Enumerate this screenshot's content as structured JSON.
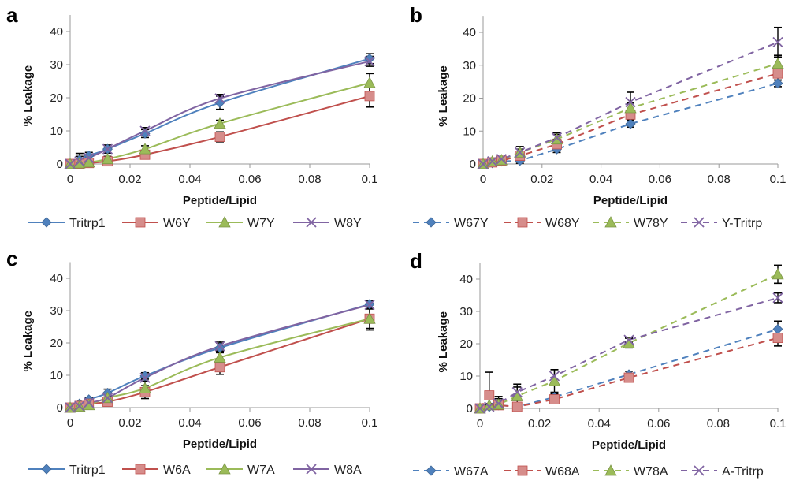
{
  "chart_data": [
    {
      "type": "line",
      "panel": "a",
      "title": "",
      "xlabel": "Peptide/Lipid",
      "ylabel": "% Leakage",
      "xlim": [
        0,
        0.1
      ],
      "ylim": [
        0,
        45
      ],
      "xticks": [
        "0",
        "0.02",
        "0.04",
        "0.06",
        "0.08",
        "0.1"
      ],
      "yticks": [
        "0",
        "10",
        "20",
        "30",
        "40"
      ],
      "line_style": "solid-smooth",
      "legend_position": "bottom",
      "x": [
        0,
        0.003125,
        0.00625,
        0.0125,
        0.025,
        0.05,
        0.1
      ],
      "series": [
        {
          "name": "Tritrp1",
          "marker": "diamond",
          "color": "#4f81bd",
          "values": [
            0,
            1.2,
            2.5,
            4.5,
            9.2,
            18.5,
            31.8
          ],
          "errors": [
            0.5,
            2.0,
            1.0,
            1.2,
            1.2,
            2.0,
            1.5
          ]
        },
        {
          "name": "W6Y",
          "marker": "square",
          "color": "#c0504d",
          "values": [
            0,
            0,
            0.3,
            0.8,
            2.8,
            8.2,
            20.5
          ],
          "errors": [
            0.3,
            0.5,
            0.5,
            1.0,
            1.0,
            1.5,
            3.3
          ]
        },
        {
          "name": "W7Y",
          "marker": "triangle",
          "color": "#9bbb59",
          "values": [
            0,
            0.2,
            0.5,
            1.5,
            4.5,
            12.2,
            24.5
          ],
          "errors": [
            0.3,
            0.5,
            0.5,
            0.8,
            1.0,
            1.0,
            2.8
          ]
        },
        {
          "name": "W8Y",
          "marker": "x",
          "color": "#8064a2",
          "values": [
            0,
            0.8,
            1.8,
            4.5,
            10.0,
            19.8,
            31.0
          ],
          "errors": [
            0.5,
            1.5,
            1.0,
            1.2,
            1.0,
            1.2,
            1.5
          ]
        }
      ]
    },
    {
      "type": "line",
      "panel": "b",
      "title": "",
      "xlabel": "Peptide/Lipid",
      "ylabel": "% Leakage",
      "xlim": [
        0,
        0.1
      ],
      "ylim": [
        0,
        45
      ],
      "xticks": [
        "0",
        "0.02",
        "0.04",
        "0.06",
        "0.08",
        "0.1"
      ],
      "yticks": [
        "0",
        "10",
        "20",
        "30",
        "40"
      ],
      "line_style": "dashed",
      "legend_position": "bottom",
      "x": [
        0,
        0.003125,
        0.00625,
        0.0125,
        0.025,
        0.05,
        0.1
      ],
      "series": [
        {
          "name": "W67Y",
          "marker": "diamond",
          "color": "#4f81bd",
          "values": [
            0,
            0.3,
            0.8,
            1.0,
            4.5,
            12.2,
            24.5
          ],
          "errors": [
            0.3,
            0.5,
            0.5,
            0.8,
            1.0,
            1.0,
            1.0
          ]
        },
        {
          "name": "W68Y",
          "marker": "square",
          "color": "#c0504d",
          "values": [
            0,
            0.5,
            1.0,
            2.5,
            6.0,
            15.0,
            27.5
          ],
          "errors": [
            0.3,
            0.5,
            0.5,
            1.0,
            1.5,
            1.5,
            2.0
          ]
        },
        {
          "name": "W78Y",
          "marker": "triangle",
          "color": "#9bbb59",
          "values": [
            0,
            0.8,
            1.2,
            3.5,
            7.5,
            17.0,
            30.5
          ],
          "errors": [
            0.3,
            0.5,
            0.5,
            1.0,
            1.5,
            1.5,
            2.5
          ]
        },
        {
          "name": "Y-Tritrp",
          "marker": "x",
          "color": "#8064a2",
          "values": [
            0,
            0.8,
            1.5,
            3.5,
            8.0,
            18.8,
            37.0
          ],
          "errors": [
            0.5,
            0.5,
            0.5,
            1.8,
            1.5,
            3.0,
            4.5
          ]
        }
      ]
    },
    {
      "type": "line",
      "panel": "c",
      "title": "",
      "xlabel": "Peptide/Lipid",
      "ylabel": "% Leakage",
      "xlim": [
        0,
        0.1
      ],
      "ylim": [
        0,
        45
      ],
      "xticks": [
        "0",
        "0.02",
        "0.04",
        "0.06",
        "0.08",
        "0.1"
      ],
      "yticks": [
        "0",
        "10",
        "20",
        "30",
        "40"
      ],
      "line_style": "solid-smooth",
      "legend_position": "bottom",
      "x": [
        0,
        0.003125,
        0.00625,
        0.0125,
        0.025,
        0.05,
        0.1
      ],
      "series": [
        {
          "name": "Tritrp1",
          "marker": "diamond",
          "color": "#4f81bd",
          "values": [
            0,
            1.2,
            2.5,
            4.5,
            9.8,
            18.5,
            32.0
          ],
          "errors": [
            0.3,
            0.5,
            0.5,
            1.2,
            1.0,
            1.5,
            1.2
          ]
        },
        {
          "name": "W6A",
          "marker": "square",
          "color": "#c0504d",
          "values": [
            0,
            0.5,
            1.2,
            1.8,
            4.8,
            12.5,
            27.5
          ],
          "errors": [
            0.3,
            0.5,
            0.5,
            1.0,
            2.0,
            2.2,
            3.5
          ]
        },
        {
          "name": "W7A",
          "marker": "triangle",
          "color": "#9bbb59",
          "values": [
            0,
            0.3,
            0.8,
            3.0,
            6.0,
            15.5,
            27.5
          ],
          "errors": [
            0.3,
            0.5,
            0.5,
            1.0,
            2.0,
            1.5,
            3.0
          ]
        },
        {
          "name": "W8A",
          "marker": "x",
          "color": "#8064a2",
          "values": [
            0,
            0.5,
            1.5,
            3.0,
            9.2,
            19.0,
            31.8
          ],
          "errors": [
            0.3,
            0.5,
            0.5,
            1.0,
            1.0,
            1.5,
            1.2
          ]
        }
      ]
    },
    {
      "type": "line",
      "panel": "d",
      "title": "",
      "xlabel": "Peptide/Lipid",
      "ylabel": "% Leakage",
      "xlim": [
        0,
        0.1
      ],
      "ylim": [
        0,
        45
      ],
      "xticks": [
        "0",
        "0.02",
        "0.04",
        "0.06",
        "0.08",
        "0.1"
      ],
      "yticks": [
        "0",
        "10",
        "20",
        "30",
        "40"
      ],
      "line_style": "dashed",
      "legend_position": "bottom",
      "x": [
        0,
        0.003125,
        0.00625,
        0.0125,
        0.025,
        0.05,
        0.1
      ],
      "series": [
        {
          "name": "W67A",
          "marker": "diamond",
          "color": "#4f81bd",
          "values": [
            0,
            0.5,
            1.0,
            0.5,
            3.5,
            10.5,
            24.5
          ],
          "errors": [
            0.3,
            0.5,
            0.5,
            0.5,
            1.0,
            1.0,
            2.5
          ]
        },
        {
          "name": "W68A",
          "marker": "square",
          "color": "#c0504d",
          "values": [
            0,
            4.0,
            1.0,
            0.5,
            2.8,
            9.5,
            21.8
          ],
          "errors": [
            0.3,
            7.2,
            0.5,
            0.5,
            1.0,
            1.0,
            2.5
          ]
        },
        {
          "name": "W78A",
          "marker": "triangle",
          "color": "#9bbb59",
          "values": [
            0,
            1.0,
            1.2,
            3.8,
            8.5,
            20.2,
            41.5
          ],
          "errors": [
            0.3,
            0.5,
            2.5,
            2.8,
            3.5,
            1.5,
            2.8
          ]
        },
        {
          "name": "A-Tritrp",
          "marker": "x",
          "color": "#8064a2",
          "values": [
            0,
            0.5,
            1.5,
            5.0,
            10.0,
            21.2,
            34.2
          ],
          "errors": [
            0.3,
            0.5,
            1.5,
            2.5,
            2.0,
            0.8,
            1.5
          ]
        }
      ]
    }
  ]
}
